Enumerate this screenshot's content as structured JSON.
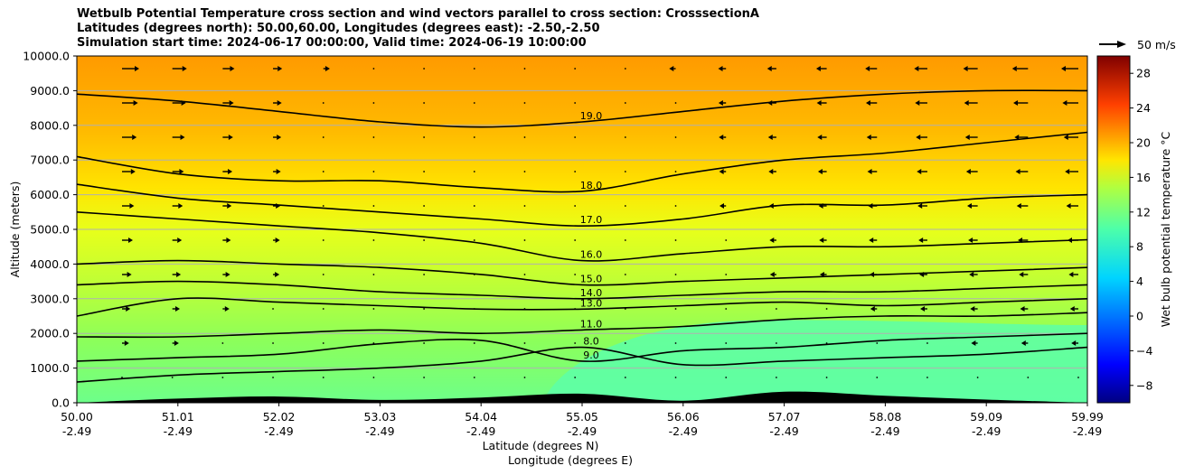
{
  "chart_data": {
    "type": "contour",
    "title": [
      "Wetbulb Potential Temperature cross section and wind vectors parallel to cross section: CrosssectionA",
      "Latitudes (degrees north): 50.00,60.00, Longitudes (degrees east): -2.50,-2.50",
      "Simulation start time: 2024-06-17 00:00:00, Valid time: 2024-06-19 10:00:00"
    ],
    "ylabel": "Altitude (meters)",
    "xlabel_lines": [
      "Latitude (degrees N)",
      "Longitude (degrees E)"
    ],
    "ylim": [
      0,
      10000
    ],
    "y_ticks": [
      "0.0",
      "1000.0",
      "2000.0",
      "3000.0",
      "4000.0",
      "5000.0",
      "6000.0",
      "7000.0",
      "8000.0",
      "9000.0",
      "10000.0"
    ],
    "x_ticks": [
      {
        "lat": "50.00",
        "lon": "-2.49"
      },
      {
        "lat": "51.01",
        "lon": "-2.49"
      },
      {
        "lat": "52.02",
        "lon": "-2.49"
      },
      {
        "lat": "53.03",
        "lon": "-2.49"
      },
      {
        "lat": "54.04",
        "lon": "-2.49"
      },
      {
        "lat": "55.05",
        "lon": "-2.49"
      },
      {
        "lat": "56.06",
        "lon": "-2.49"
      },
      {
        "lat": "57.07",
        "lon": "-2.49"
      },
      {
        "lat": "58.08",
        "lon": "-2.49"
      },
      {
        "lat": "59.09",
        "lon": "-2.49"
      },
      {
        "lat": "59.99",
        "lon": "-2.49"
      }
    ],
    "grid": "horizontal",
    "colorbar": {
      "label": "Wet bulb potential temperature °C",
      "colormap": "jet",
      "range": [
        -10,
        30
      ],
      "ticks": [
        "−8",
        "−4",
        "0",
        "4",
        "8",
        "12",
        "16",
        "20",
        "24",
        "28"
      ]
    },
    "quiver_key": "50 m/s",
    "contour_levels": [
      {
        "value": 19.0,
        "label": "19.0",
        "heights": [
          8900,
          8700,
          8400,
          8100,
          7950,
          8100,
          8400,
          8700,
          8900,
          9000,
          9000
        ]
      },
      {
        "value": 18.0,
        "label": "18.0",
        "heights": [
          7100,
          6600,
          6400,
          6400,
          6200,
          6100,
          6600,
          7000,
          7200,
          7500,
          7800
        ]
      },
      {
        "value": 17.0,
        "label": "17.0",
        "heights": [
          6300,
          5900,
          5700,
          5500,
          5300,
          5100,
          5300,
          5700,
          5700,
          5900,
          6000
        ]
      },
      {
        "value": 16.0,
        "label": "16.0",
        "heights": [
          5500,
          5300,
          5100,
          4900,
          4600,
          4100,
          4300,
          4500,
          4500,
          4600,
          4700
        ]
      },
      {
        "value": 15.0,
        "label": "15.0",
        "heights": [
          4000,
          4100,
          4000,
          3900,
          3700,
          3400,
          3500,
          3600,
          3700,
          3800,
          3900
        ]
      },
      {
        "value": 14.0,
        "label": "14.0",
        "heights": [
          3400,
          3500,
          3400,
          3200,
          3100,
          3000,
          3100,
          3200,
          3200,
          3300,
          3400
        ]
      },
      {
        "value": 13.0,
        "label": "13.0",
        "heights": [
          2500,
          3000,
          2900,
          2800,
          2700,
          2700,
          2800,
          2900,
          2800,
          2900,
          3000
        ]
      },
      {
        "value": 11.0,
        "label": "11.0",
        "heights": [
          1900,
          1900,
          2000,
          2100,
          2000,
          2100,
          2200,
          2400,
          2500,
          2500,
          2600
        ]
      },
      {
        "value": 9.0,
        "label": "9.0",
        "heights": [
          1200,
          1300,
          1400,
          1700,
          1800,
          1200,
          1500,
          1600,
          1800,
          1900,
          2000
        ]
      },
      {
        "value": 8.0,
        "label": "8.0",
        "heights": [
          600,
          800,
          900,
          1000,
          1200,
          1600,
          1100,
          1200,
          1300,
          1400,
          1600
        ]
      }
    ],
    "terrain": [
      0,
      120,
      180,
      80,
      150,
      260,
      60,
      320,
      200,
      90,
      0
    ]
  },
  "colors": {
    "contour": "#000000",
    "terrain": "#000000",
    "grid": "#b0b0b0"
  }
}
